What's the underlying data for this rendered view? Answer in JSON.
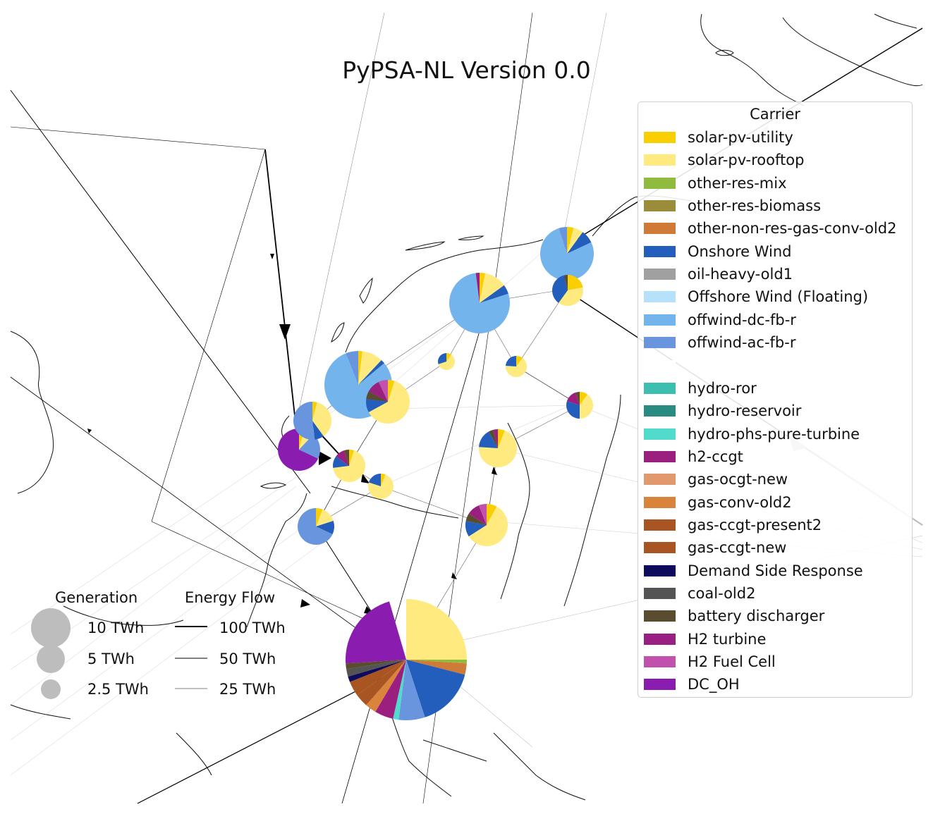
{
  "title": "PyPSA-NL Version 0.0",
  "carrier_legend": {
    "title": "Carrier",
    "items": [
      {
        "label": "solar-pv-utility",
        "color": "#f9cf02"
      },
      {
        "label": "solar-pv-rooftop",
        "color": "#ffea80"
      },
      {
        "label": "other-res-mix",
        "color": "#8fbc3f"
      },
      {
        "label": "other-res-biomass",
        "color": "#9b8c3c"
      },
      {
        "label": "other-non-res-gas-conv-old2",
        "color": "#cf7a36"
      },
      {
        "label": "Onshore Wind",
        "color": "#235ebc"
      },
      {
        "label": "oil-heavy-old1",
        "color": "#a0a0a0"
      },
      {
        "label": "Offshore Wind (Floating)",
        "color": "#b5e2fa"
      },
      {
        "label": "offwind-dc-fb-r",
        "color": "#74b4ec"
      },
      {
        "label": "offwind-ac-fb-r",
        "color": "#6895dd"
      },
      {
        "label": "",
        "color": "#ffffff"
      },
      {
        "label": "hydro-ror",
        "color": "#3dbfb0"
      },
      {
        "label": "hydro-reservoir",
        "color": "#298c81"
      },
      {
        "label": "hydro-phs-pure-turbine",
        "color": "#51dbcc"
      },
      {
        "label": "h2-ccgt",
        "color": "#9a1f7e"
      },
      {
        "label": "gas-ocgt-new",
        "color": "#e0986c"
      },
      {
        "label": "gas-conv-old2",
        "color": "#d9843a"
      },
      {
        "label": "gas-ccgt-present2",
        "color": "#a85522"
      },
      {
        "label": "gas-ccgt-new",
        "color": "#a85522"
      },
      {
        "label": "Demand Side Response",
        "color": "#0e0b5c"
      },
      {
        "label": "coal-old2",
        "color": "#545454"
      },
      {
        "label": "battery discharger",
        "color": "#5a4c2e"
      },
      {
        "label": "H2 turbine",
        "color": "#991f83"
      },
      {
        "label": "H2 Fuel Cell",
        "color": "#c251ae"
      },
      {
        "label": "DC_OH",
        "color": "#8a1caf"
      }
    ]
  },
  "generation_legend": {
    "title": "Generation",
    "items": [
      {
        "label": "10 TWh",
        "value_twh": 10
      },
      {
        "label": "5 TWh",
        "value_twh": 5
      },
      {
        "label": "2.5 TWh",
        "value_twh": 2.5
      }
    ]
  },
  "flow_legend": {
    "title": "Energy Flow",
    "items": [
      {
        "label": "100 TWh",
        "value_twh": 100
      },
      {
        "label": "50 TWh",
        "value_twh": 50
      },
      {
        "label": "25 TWh",
        "value_twh": 25
      }
    ]
  },
  "colors": {
    "line": "#000000",
    "coast": "#111111",
    "legend_marker": "#bdbdbd",
    "import_line": "#bbbbbb"
  }
}
